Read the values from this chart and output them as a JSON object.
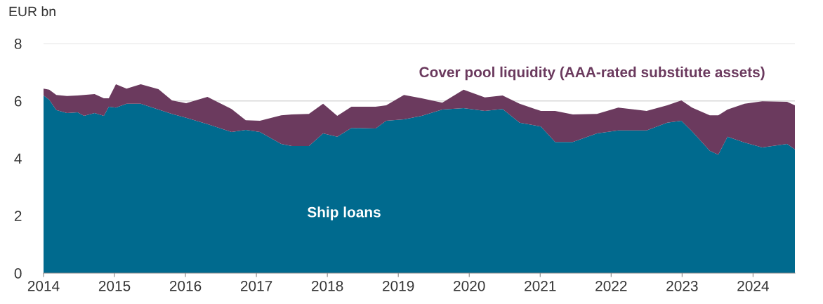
{
  "chart_data": {
    "type": "area",
    "stacked": true,
    "ylabel": "EUR bn",
    "x": [
      2014.0,
      2014.08,
      2014.18,
      2014.33,
      2014.48,
      2014.57,
      2014.72,
      2014.85,
      2014.92,
      2015.02,
      2015.17,
      2015.37,
      2015.62,
      2015.81,
      2016.01,
      2016.31,
      2016.65,
      2016.85,
      2017.05,
      2017.35,
      2017.5,
      2017.74,
      2017.94,
      2018.14,
      2018.34,
      2018.68,
      2018.83,
      2019.08,
      2019.33,
      2019.62,
      2019.92,
      2020.22,
      2020.47,
      2020.71,
      2021.01,
      2021.21,
      2021.46,
      2021.8,
      2022.1,
      2022.5,
      2022.79,
      2022.99,
      2023.14,
      2023.39,
      2023.51,
      2023.64,
      2023.88,
      2024.13,
      2024.48,
      2024.59
    ],
    "series": [
      {
        "name": "Ship loans",
        "color": "#006a8e",
        "values": [
          6.19,
          6.04,
          5.68,
          5.58,
          5.6,
          5.48,
          5.58,
          5.48,
          5.8,
          5.77,
          5.9,
          5.9,
          5.7,
          5.55,
          5.41,
          5.19,
          4.92,
          4.99,
          4.92,
          4.5,
          4.43,
          4.43,
          4.87,
          4.75,
          5.06,
          5.04,
          5.31,
          5.36,
          5.48,
          5.7,
          5.75,
          5.65,
          5.72,
          5.24,
          5.11,
          4.57,
          4.57,
          4.87,
          4.97,
          4.97,
          5.24,
          5.31,
          4.94,
          4.26,
          4.13,
          4.75,
          4.55,
          4.38,
          4.5,
          4.31
        ]
      },
      {
        "name": "Cover pool liquidity (AAA-rated substitute assets)",
        "color": "#6b3a5e",
        "values": [
          0.24,
          0.35,
          0.53,
          0.59,
          0.59,
          0.73,
          0.66,
          0.61,
          0.29,
          0.81,
          0.53,
          0.68,
          0.71,
          0.47,
          0.51,
          0.95,
          0.8,
          0.34,
          0.39,
          1.0,
          1.1,
          1.12,
          1.03,
          0.73,
          0.74,
          0.76,
          0.54,
          0.85,
          0.61,
          0.24,
          0.64,
          0.47,
          0.47,
          0.66,
          0.54,
          1.08,
          0.96,
          0.68,
          0.8,
          0.68,
          0.61,
          0.71,
          0.83,
          1.24,
          1.37,
          0.95,
          1.35,
          1.61,
          1.47,
          1.54
        ]
      }
    ],
    "xlim": [
      2014,
      2024.59
    ],
    "xticks": [
      2014,
      2015,
      2016,
      2017,
      2018,
      2019,
      2020,
      2021,
      2022,
      2023,
      2024
    ],
    "ylim": [
      0,
      8
    ],
    "yticks": [
      0,
      2,
      4,
      6,
      8
    ],
    "grid": "y",
    "legend": false
  }
}
